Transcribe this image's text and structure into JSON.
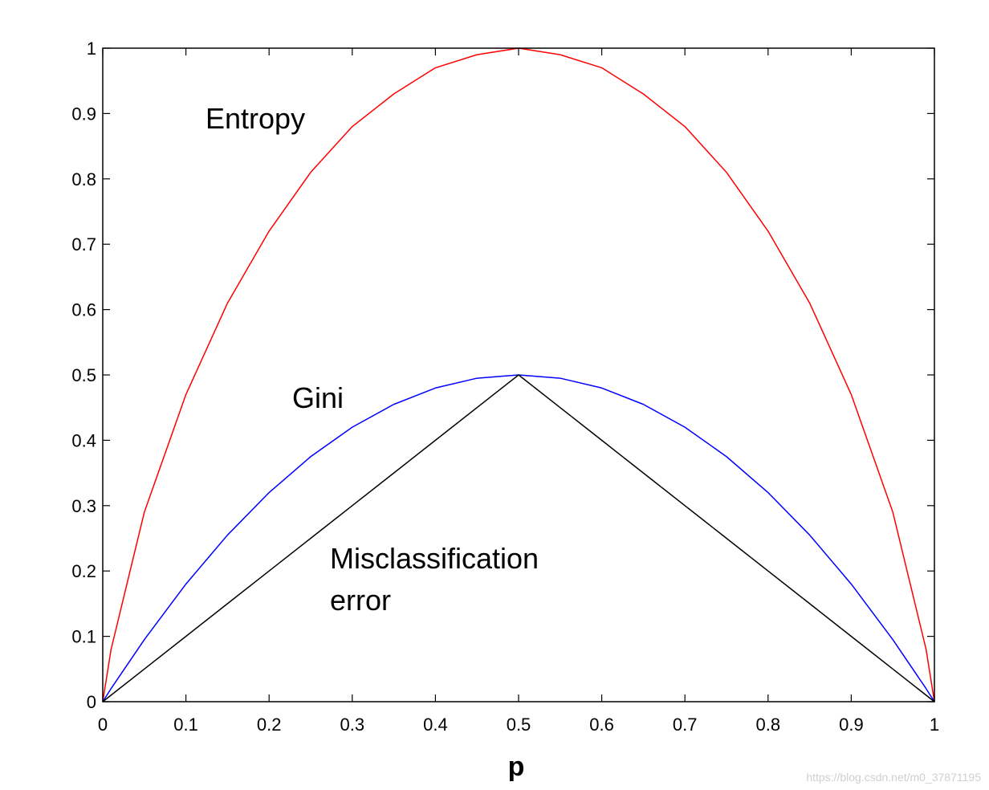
{
  "chart_data": {
    "type": "line",
    "title": "",
    "xlabel": "p",
    "ylabel": "",
    "xlim": [
      0,
      1
    ],
    "ylim": [
      0,
      1
    ],
    "grid": false,
    "x_ticks": [
      "0",
      "0.1",
      "0.2",
      "0.3",
      "0.4",
      "0.5",
      "0.6",
      "0.7",
      "0.8",
      "0.9",
      "1"
    ],
    "y_ticks": [
      "0",
      "0.1",
      "0.2",
      "0.3",
      "0.4",
      "0.5",
      "0.6",
      "0.7",
      "0.8",
      "0.9",
      "1"
    ],
    "x": [
      0,
      0.01,
      0.05,
      0.1,
      0.15,
      0.2,
      0.25,
      0.3,
      0.35,
      0.4,
      0.45,
      0.5,
      0.55,
      0.6,
      0.65,
      0.7,
      0.75,
      0.8,
      0.85,
      0.9,
      0.95,
      0.99,
      1
    ],
    "series": [
      {
        "name": "Entropy",
        "color": "#ff0000",
        "values": [
          0,
          0.08,
          0.29,
          0.47,
          0.61,
          0.72,
          0.81,
          0.88,
          0.93,
          0.97,
          0.99,
          1.0,
          0.99,
          0.97,
          0.93,
          0.88,
          0.81,
          0.72,
          0.61,
          0.47,
          0.29,
          0.08,
          0
        ]
      },
      {
        "name": "Gini",
        "color": "#0000ff",
        "values": [
          0,
          0.02,
          0.095,
          0.18,
          0.255,
          0.32,
          0.375,
          0.42,
          0.455,
          0.48,
          0.495,
          0.5,
          0.495,
          0.48,
          0.455,
          0.42,
          0.375,
          0.32,
          0.255,
          0.18,
          0.095,
          0.02,
          0
        ]
      },
      {
        "name": "Misclassification error",
        "color": "#000000",
        "values": [
          0,
          0.01,
          0.05,
          0.1,
          0.15,
          0.2,
          0.25,
          0.3,
          0.35,
          0.4,
          0.45,
          0.5,
          0.45,
          0.4,
          0.35,
          0.3,
          0.25,
          0.2,
          0.15,
          0.1,
          0.05,
          0.01,
          0
        ]
      }
    ],
    "annotations": {
      "entropy": "Entropy",
      "gini": "Gini",
      "misclass_line1": "Misclassification",
      "misclass_line2": "error"
    }
  },
  "watermark": "https://blog.csdn.net/m0_37871195"
}
